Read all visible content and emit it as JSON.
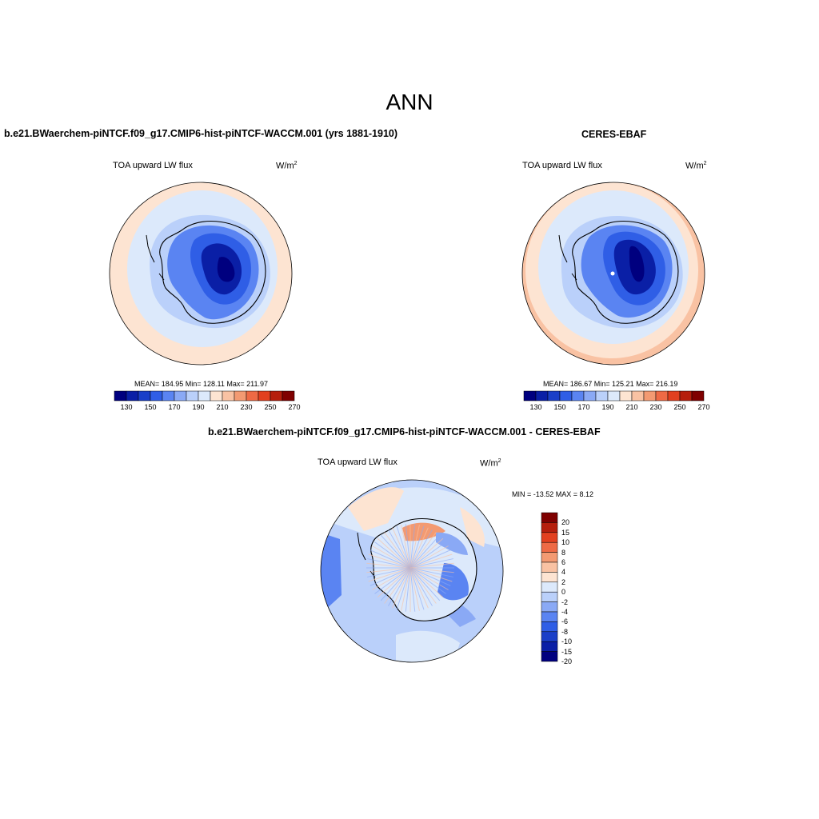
{
  "figure": {
    "title": "ANN"
  },
  "panels": [
    {
      "title": "b.e21.BWaerchem-piNTCF.f09_g17.CMIP6-hist-piNTCF-WACCM.001 (yrs 1881-1910)",
      "variable": "TOA upward LW flux",
      "units": "W/m",
      "units_sup": "2",
      "stats": "MEAN= 184.95  Min= 128.11  Max= 211.97"
    },
    {
      "title": "CERES-EBAF",
      "variable": "TOA upward LW flux",
      "units": "W/m",
      "units_sup": "2",
      "stats": "MEAN= 186.67  Min= 125.21  Max= 216.19"
    },
    {
      "title": "b.e21.BWaerchem-piNTCF.f09_g17.CMIP6-hist-piNTCF-WACCM.001 - CERES-EBAF",
      "variable": "TOA upward LW flux",
      "units": "W/m",
      "units_sup": "2",
      "stats": "MIN = -13.52 MAX =   8.12"
    }
  ],
  "colorbar_abs": {
    "colors": [
      "#00007f",
      "#0a1fa6",
      "#1a3fc8",
      "#2f5ee6",
      "#5a84f2",
      "#8aa9f5",
      "#bad0fa",
      "#dce9fb",
      "#fde4d2",
      "#f9c2a3",
      "#f39a72",
      "#ee6a45",
      "#e2401f",
      "#b51e0c",
      "#7f0000"
    ],
    "labels": [
      "130",
      "150",
      "170",
      "190",
      "210",
      "230",
      "250",
      "270"
    ]
  },
  "colorbar_diff": {
    "colors": [
      "#7f0000",
      "#b51e0c",
      "#e2401f",
      "#ee6a45",
      "#f39a72",
      "#f9c2a3",
      "#fde4d2",
      "#dce9fb",
      "#bad0fa",
      "#8aa9f5",
      "#5a84f2",
      "#2f5ee6",
      "#1a3fc8",
      "#0a1fa6",
      "#00007f"
    ],
    "labels": [
      "20",
      "15",
      "10",
      "8",
      "6",
      "4",
      "2",
      "0",
      "-2",
      "-4",
      "-6",
      "-8",
      "-10",
      "-15",
      "-20"
    ]
  }
}
